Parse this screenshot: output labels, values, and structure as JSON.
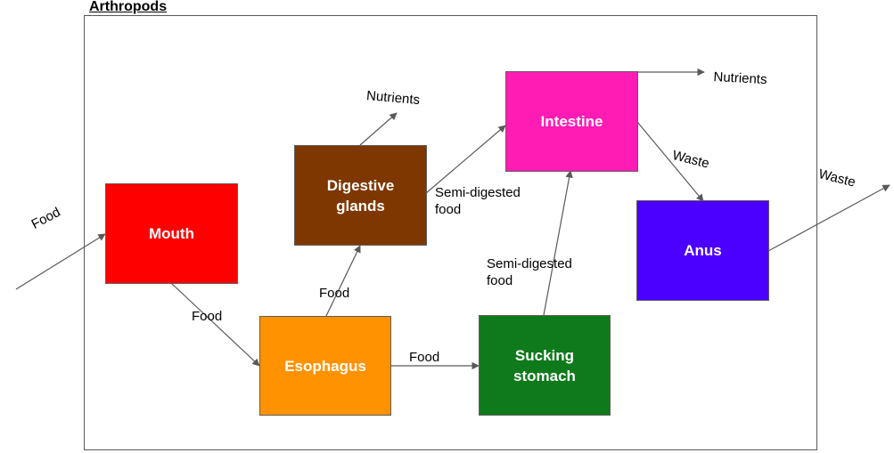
{
  "title": "Arthropods",
  "colors": {
    "mouth": "#ff0000",
    "esophagus": "#ff9200",
    "digestive_glands": "#7f3700",
    "sucking_stomach": "#0f7a1b",
    "intestine": "#ff1cb5",
    "anus": "#4b00ff",
    "arrow": "#595959"
  },
  "nodes": {
    "mouth": "Mouth",
    "esophagus": "Esophagus",
    "digestive_glands_line1": "Digestive",
    "digestive_glands_line2": "glands",
    "sucking_stomach_line1": "Sucking",
    "sucking_stomach_line2": "stomach",
    "intestine": "Intestine",
    "anus": "Anus"
  },
  "edge_labels": {
    "food_in": "Food",
    "mouth_to_esophagus": "Food",
    "esophagus_to_glands": "Food",
    "esophagus_to_stomach": "Food",
    "glands_nutrients": "Nutrients",
    "glands_to_intestine_line1": "Semi-digested",
    "glands_to_intestine_line2": "food",
    "stomach_to_intestine_line1": "Semi-digested",
    "stomach_to_intestine_line2": "food",
    "intestine_nutrients": "Nutrients",
    "intestine_waste": "Waste",
    "anus_waste": "Waste"
  }
}
